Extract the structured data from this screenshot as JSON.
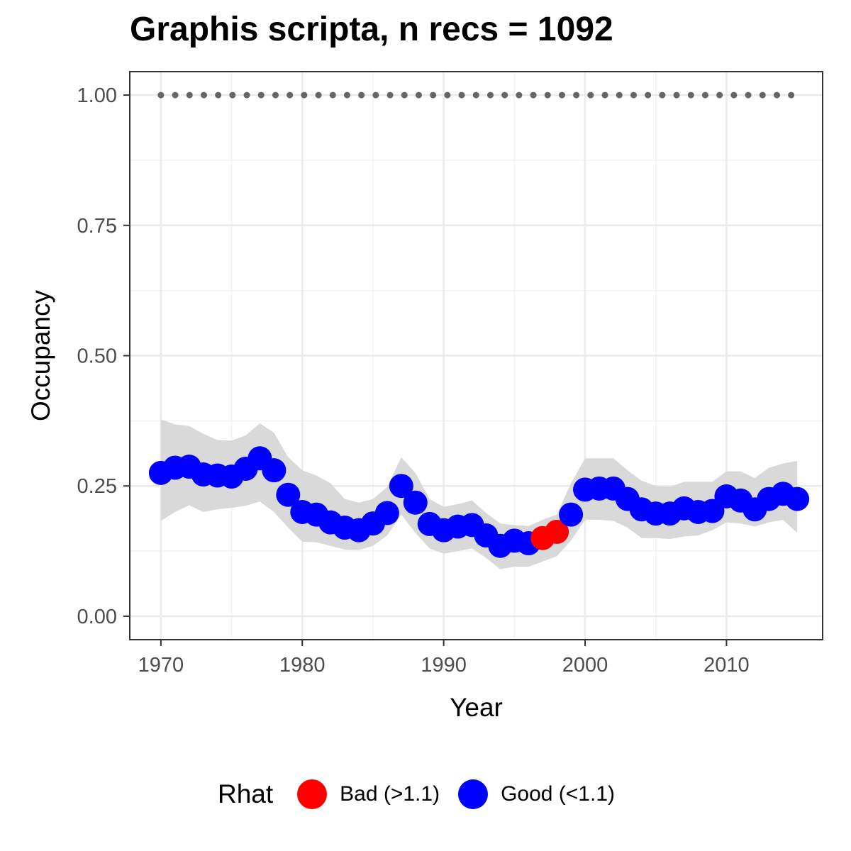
{
  "chart_data": {
    "type": "scatter",
    "title": "Graphis scripta, n recs = 1092",
    "xlabel": "Year",
    "ylabel": "Occupancy",
    "xlim": [
      1967.8,
      2016.8
    ],
    "ylim": [
      -0.045,
      1.045
    ],
    "xticks": [
      1970,
      1980,
      1990,
      2000,
      2010
    ],
    "yticks": [
      0.0,
      0.25,
      0.5,
      0.75,
      1.0
    ],
    "ytick_labels": [
      "0.00",
      "0.25",
      "0.50",
      "0.75",
      "1.00"
    ],
    "grid": true,
    "legend": {
      "title": "Rhat",
      "position": "bottom",
      "entries": [
        {
          "label": "Bad (>1.1)",
          "color": "#ff0000"
        },
        {
          "label": "Good (<1.1)",
          "color": "#0000ff"
        }
      ]
    },
    "colors": {
      "bad": "#ff0000",
      "good": "#0000ff",
      "ribbon": "#d9d9d9",
      "reference": "#666666"
    },
    "reference_line": {
      "y": 1.0,
      "style": "dotted"
    },
    "x": [
      1970,
      1971,
      1972,
      1973,
      1974,
      1975,
      1976,
      1977,
      1978,
      1979,
      1980,
      1981,
      1982,
      1983,
      1984,
      1985,
      1986,
      1987,
      1988,
      1989,
      1990,
      1991,
      1992,
      1993,
      1994,
      1995,
      1996,
      1997,
      1998,
      1999,
      2000,
      2001,
      2002,
      2003,
      2004,
      2005,
      2006,
      2007,
      2008,
      2009,
      2010,
      2011,
      2012,
      2013,
      2014,
      2015
    ],
    "y": [
      0.275,
      0.285,
      0.287,
      0.272,
      0.27,
      0.268,
      0.283,
      0.303,
      0.28,
      0.233,
      0.2,
      0.195,
      0.18,
      0.17,
      0.165,
      0.178,
      0.198,
      0.25,
      0.218,
      0.177,
      0.165,
      0.172,
      0.175,
      0.155,
      0.135,
      0.145,
      0.14,
      0.15,
      0.162,
      0.195,
      0.243,
      0.245,
      0.245,
      0.225,
      0.205,
      0.197,
      0.197,
      0.207,
      0.2,
      0.202,
      0.23,
      0.222,
      0.205,
      0.225,
      0.235,
      0.225
    ],
    "lower": [
      0.183,
      0.2,
      0.213,
      0.2,
      0.205,
      0.208,
      0.212,
      0.22,
      0.2,
      0.17,
      0.143,
      0.142,
      0.135,
      0.128,
      0.127,
      0.135,
      0.155,
      0.195,
      0.16,
      0.13,
      0.12,
      0.125,
      0.13,
      0.112,
      0.09,
      0.095,
      0.095,
      0.105,
      0.115,
      0.145,
      0.185,
      0.185,
      0.183,
      0.17,
      0.15,
      0.15,
      0.148,
      0.153,
      0.155,
      0.165,
      0.18,
      0.178,
      0.172,
      0.18,
      0.185,
      0.16
    ],
    "upper": [
      0.378,
      0.368,
      0.365,
      0.35,
      0.338,
      0.337,
      0.347,
      0.37,
      0.352,
      0.305,
      0.28,
      0.27,
      0.255,
      0.225,
      0.218,
      0.225,
      0.248,
      0.305,
      0.275,
      0.225,
      0.21,
      0.215,
      0.222,
      0.198,
      0.178,
      0.175,
      0.173,
      0.185,
      0.195,
      0.255,
      0.303,
      0.303,
      0.303,
      0.28,
      0.26,
      0.25,
      0.248,
      0.258,
      0.258,
      0.258,
      0.278,
      0.278,
      0.265,
      0.285,
      0.293,
      0.298
    ],
    "rhat_status": [
      "good",
      "good",
      "good",
      "good",
      "good",
      "good",
      "good",
      "good",
      "good",
      "good",
      "good",
      "good",
      "good",
      "good",
      "good",
      "good",
      "good",
      "good",
      "good",
      "good",
      "good",
      "good",
      "good",
      "good",
      "good",
      "good",
      "good",
      "bad",
      "bad",
      "good",
      "good",
      "good",
      "good",
      "good",
      "good",
      "good",
      "good",
      "good",
      "good",
      "good",
      "good",
      "good",
      "good",
      "good",
      "good",
      "good"
    ]
  }
}
